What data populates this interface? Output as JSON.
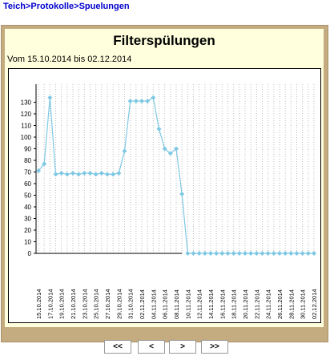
{
  "breadcrumb": {
    "part1": "Teich",
    "sep1": ">",
    "part2": "Protokolle",
    "sep2": ">",
    "part3": "Spuelungen"
  },
  "title": "Filterspülungen",
  "date_range": "Vom 15.10.2014 bis 02.12.2014",
  "nav": {
    "first": "<<",
    "prev": "<",
    "next": ">",
    "last": ">>"
  },
  "colors": {
    "line": "#7ec8e3",
    "marker": "#7ec8e3",
    "panel": "#c5ab80",
    "background": "#ffffdd"
  },
  "chart_data": {
    "type": "line",
    "ylim": [
      0,
      140
    ],
    "yticks": [
      0,
      10,
      20,
      30,
      40,
      50,
      60,
      70,
      80,
      90,
      100,
      110,
      120,
      130
    ],
    "grid": "vertical-dotted",
    "series": [
      {
        "x": [
          "15.10.2014",
          "16.10.2014",
          "17.10.2014",
          "18.10.2014",
          "19.10.2014",
          "20.10.2014",
          "21.10.2014",
          "22.10.2014",
          "23.10.2014",
          "24.10.2014",
          "25.10.2014",
          "26.10.2014",
          "27.10.2014",
          "28.10.2014",
          "29.10.2014",
          "30.10.2014",
          "31.10.2014",
          "01.11.2014",
          "02.11.2014",
          "03.11.2014",
          "04.11.2014",
          "05.11.2014",
          "06.11.2014",
          "07.11.2014",
          "08.11.2014",
          "09.11.2014",
          "10.11.2014",
          "11.11.2014",
          "12.11.2014",
          "13.11.2014",
          "14.11.2014",
          "15.11.2014",
          "16.11.2014",
          "17.11.2014",
          "18.11.2014",
          "19.11.2014",
          "20.11.2014",
          "21.11.2014",
          "22.11.2014",
          "23.11.2014",
          "24.11.2014",
          "25.11.2014",
          "26.11.2014",
          "27.11.2014",
          "28.11.2014",
          "29.11.2014",
          "30.11.2014",
          "01.12.2014",
          "02.12.2014"
        ],
        "values": [
          71,
          77,
          134,
          68,
          69,
          68,
          69,
          68,
          69,
          69,
          68,
          69,
          68,
          68,
          69,
          88,
          131,
          131,
          131,
          131,
          134,
          107,
          90,
          86,
          90,
          51,
          0,
          0,
          0,
          0,
          0,
          0,
          0,
          0,
          0,
          0,
          0,
          0,
          0,
          0,
          0,
          0,
          0,
          0,
          0,
          0,
          0,
          0,
          0
        ]
      }
    ],
    "xtick_labels": [
      "15.10.2014",
      "17.10.2014",
      "19.10.2014",
      "21.10.2014",
      "23.10.2014",
      "25.10.2014",
      "27.10.2014",
      "29.10.2014",
      "31.10.2014",
      "02.11.2014",
      "04.11.2014",
      "06.11.2014",
      "08.11.2014",
      "10.11.2014",
      "12.11.2014",
      "14.11.2014",
      "16.11.2014",
      "18.11.2014",
      "20.11.2014",
      "22.11.2014",
      "24.11.2014",
      "26.11.2014",
      "28.11.2014",
      "30.11.2014",
      "02.12.2014"
    ]
  }
}
